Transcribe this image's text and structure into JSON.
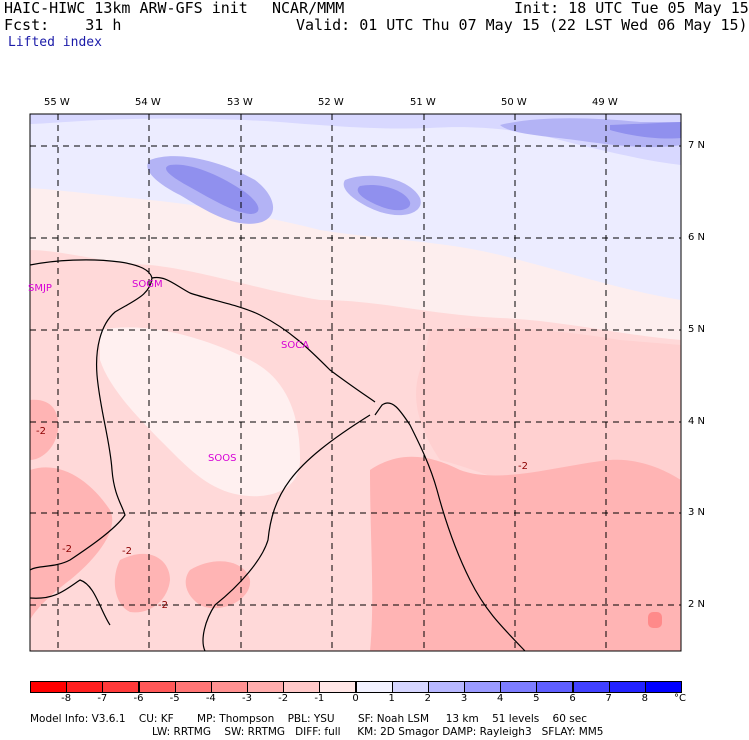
{
  "header": {
    "model": "HAIC-HIWC 13km ARW-GFS init",
    "center": "NCAR/MMM",
    "init": "Init: 18 UTC Tue 05 May 15",
    "fcst": "Fcst:    31 h",
    "valid": "Valid: 01 UTC Thu 07 May 15 (22 LST Wed 06 May 15)",
    "field": "Lifted index"
  },
  "map": {
    "lon_labels": [
      "55 W",
      "54 W",
      "53 W",
      "52 W",
      "51 W",
      "50 W",
      "49 W"
    ],
    "lat_labels": [
      "7 N",
      "6 N",
      "5 N",
      "4 N",
      "3 N",
      "2 N"
    ],
    "stations": [
      "SMJP",
      "SOGM",
      "SOCA",
      "SOOS"
    ],
    "contour_labels": [
      "-2",
      "-2",
      "-2",
      "-2",
      "-2"
    ]
  },
  "colorbar": {
    "ticks": [
      "-8",
      "-7",
      "-6",
      "-5",
      "-4",
      "-3",
      "-2",
      "-1",
      "0",
      "1",
      "2",
      "3",
      "4",
      "5",
      "6",
      "7",
      "8"
    ],
    "unit": "°C",
    "colors": [
      "#ff0000",
      "#ff1f1f",
      "#ff3a3a",
      "#ff5858",
      "#ff7575",
      "#ff9191",
      "#ffadad",
      "#ffc9c9",
      "#ffe6e6",
      "#f2f2ff",
      "#d6d6ff",
      "#b8b8ff",
      "#9b9bff",
      "#7d7dff",
      "#5f5fff",
      "#4141ff",
      "#2222ff",
      "#0000ff"
    ]
  },
  "footer": {
    "line1": "Model Info: V3.6.1    CU: KF       MP: Thompson    PBL: YSU       SF: Noah LSM     13 km    51 levels    60 sec",
    "line2": "LW: RRTMG    SW: RRTMG   DIFF: full     KM: 2D Smagor DAMP: Rayleigh3   SFLAY: MM5"
  }
}
